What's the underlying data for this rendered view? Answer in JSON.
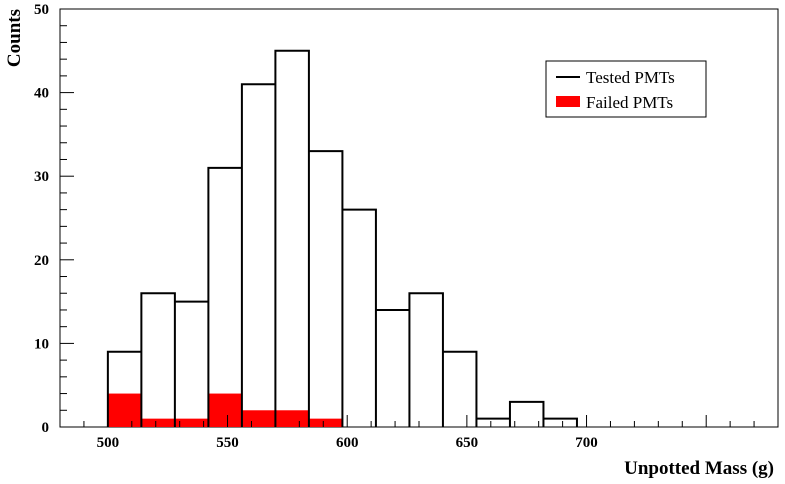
{
  "chart_data": {
    "type": "bar",
    "subtype": "histogram",
    "xlabel": "Unpotted Mass (g)",
    "ylabel": "Counts",
    "xlim": [
      480,
      780
    ],
    "ylim": [
      0,
      50
    ],
    "x_ticks": [
      500,
      550,
      600,
      650,
      700
    ],
    "y_ticks": [
      0,
      10,
      20,
      30,
      40,
      50
    ],
    "bin_edges": [
      500,
      514,
      528,
      542,
      556,
      570,
      584,
      598,
      612,
      626,
      640,
      654,
      668,
      682,
      696
    ],
    "series": [
      {
        "name": "Tested PMTs",
        "style": "outline",
        "color": "#000000",
        "values": [
          9,
          16,
          15,
          31,
          41,
          45,
          33,
          26,
          14,
          16,
          9,
          1,
          3,
          1
        ]
      },
      {
        "name": "Failed PMTs",
        "style": "filled",
        "color": "#ff0000",
        "values": [
          4,
          1,
          1,
          4,
          2,
          2,
          1,
          0,
          0,
          0,
          0,
          0,
          0,
          0
        ]
      }
    ],
    "legend": {
      "position": "top-right",
      "entries": [
        "Tested PMTs",
        "Failed PMTs"
      ]
    },
    "grid": false
  }
}
